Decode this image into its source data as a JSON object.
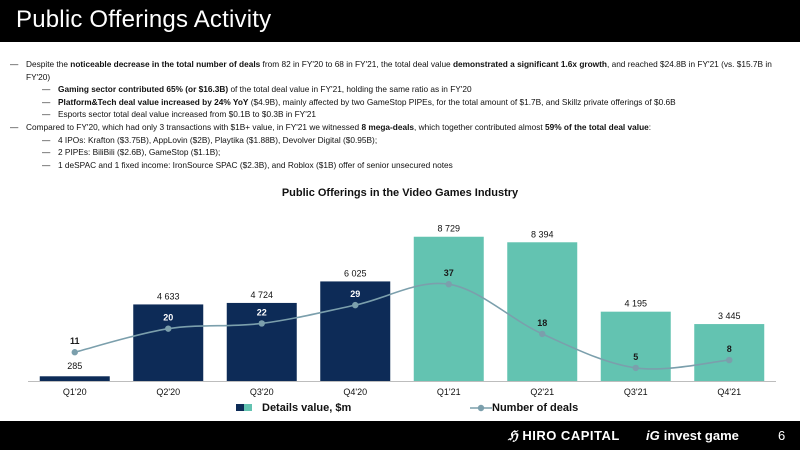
{
  "page": {
    "title": "Public Offerings Activity",
    "page_number": "6"
  },
  "bullets": [
    {
      "level": 1,
      "parts": [
        {
          "t": "Despite the "
        },
        {
          "t": "noticeable decrease in the total number of deals",
          "b": true
        },
        {
          "t": " from 82 in FY'20 to 68 in FY'21, the total deal value "
        },
        {
          "t": "demonstrated a significant 1.6x growth",
          "b": true
        },
        {
          "t": ", and reached $24.8B in FY'21 (vs. $15.7B in FY'20)"
        }
      ]
    },
    {
      "level": 2,
      "parts": [
        {
          "t": "Gaming sector contributed 65% (or $16.3B)",
          "b": true
        },
        {
          "t": " of the total deal value in FY'21, holding the same ratio as in FY'20"
        }
      ]
    },
    {
      "level": 2,
      "parts": [
        {
          "t": "Platform&Tech deal value increased by 24% YoY",
          "b": true
        },
        {
          "t": " ($4.9B), mainly affected by two GameStop PIPEs, for the total amount of $1.7B, and Skillz private offerings of $0.6B"
        }
      ]
    },
    {
      "level": 2,
      "parts": [
        {
          "t": "Esports sector total deal value increased from $0.1B to $0.3B in FY'21"
        }
      ]
    },
    {
      "level": 1,
      "parts": [
        {
          "t": "Compared to FY'20, which had only 3 transactions with $1B+ value, in FY'21 we witnessed "
        },
        {
          "t": "8 mega-deals",
          "b": true
        },
        {
          "t": ", which together contributed almost "
        },
        {
          "t": "59% of the total deal value",
          "b": true
        },
        {
          "t": ":"
        }
      ]
    },
    {
      "level": 2,
      "parts": [
        {
          "t": "4 IPOs: Krafton ($3.75B), AppLovin ($2B), Playtika ($1.88B), Devolver Digital ($0.95B);"
        }
      ]
    },
    {
      "level": 2,
      "parts": [
        {
          "t": "2 PIPEs: BiliBili ($2.6B), GameStop ($1.1B);"
        }
      ]
    },
    {
      "level": 2,
      "parts": [
        {
          "t": "1 deSPAC and 1 fixed income: IronSource SPAC ($2.3B), and Roblox ($1B) offer of senior unsecured notes"
        }
      ]
    }
  ],
  "chart_data": {
    "type": "bar",
    "title": "Public Offerings in the Video Games Industry",
    "categories": [
      "Q1'20",
      "Q2'20",
      "Q3'20",
      "Q4'20",
      "Q1'21",
      "Q2'21",
      "Q3'21",
      "Q4'21"
    ],
    "series": [
      {
        "name": "Details value, $m",
        "type": "bar",
        "values": [
          285,
          4633,
          4724,
          6025,
          8729,
          8394,
          4195,
          3445
        ],
        "labels": [
          "285",
          "4 633",
          "4 724",
          "6 025",
          "8 729",
          "8 394",
          "4 195",
          "3 445"
        ],
        "colors": [
          "#0d2b57",
          "#0d2b57",
          "#0d2b57",
          "#0d2b57",
          "#63c3b1",
          "#63c3b1",
          "#63c3b1",
          "#63c3b1"
        ]
      },
      {
        "name": "Number of deals",
        "type": "line",
        "values": [
          11,
          20,
          22,
          29,
          37,
          18,
          5,
          8
        ],
        "color": "#7b9fac"
      }
    ],
    "ylim_bars": [
      0,
      9500
    ],
    "ylim_line": [
      0,
      60
    ],
    "legend_position": "bottom"
  },
  "colors": {
    "fy20_bar": "#0d2b57",
    "fy21_bar": "#63c3b1",
    "line": "#7b9fac",
    "header": "#000000"
  },
  "footer": {
    "brand1_mark": "ℌ",
    "brand1": "HIRO CAPITAL",
    "brand2_mark": "iG",
    "brand2": "invest game"
  }
}
